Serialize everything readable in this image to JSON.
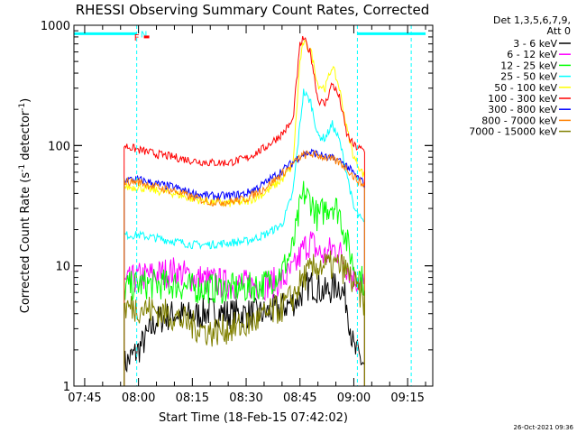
{
  "chart_data": {
    "type": "line",
    "title": "RHESSI Observing Summary Count Rates, Corrected",
    "xlabel": "Start Time (18-Feb-15 07:42:02)",
    "ylabel_main": "Corrected Count Rate (s",
    "ylabel_exp1": "-1",
    "ylabel_mid": " detector",
    "ylabel_exp2": "-1",
    "ylabel_end": ")",
    "y_scale": "log",
    "ylim": [
      1,
      1000
    ],
    "xlim_minutes": [
      -18,
      82
    ],
    "x_tick_labels": [
      {
        "label": "07:45",
        "minute": -15
      },
      {
        "label": "08:00",
        "minute": 0
      },
      {
        "label": "08:15",
        "minute": 15
      },
      {
        "label": "08:30",
        "minute": 30
      },
      {
        "label": "08:45",
        "minute": 45
      },
      {
        "label": "09:00",
        "minute": 60
      },
      {
        "label": "09:15",
        "minute": 75
      }
    ],
    "y_tick_labels": [
      {
        "label": "1",
        "value": 1
      },
      {
        "label": "10",
        "value": 10
      },
      {
        "label": "100",
        "value": 100
      },
      {
        "label": "1000",
        "value": 1000
      }
    ],
    "legend_header": [
      "Det 1,3,5,6,7,9,",
      "Att 0"
    ],
    "legend_placement": "right",
    "timestamp": "26-Oct-2021 09:36",
    "data_window_minutes": [
      -4,
      63
    ],
    "flags": [
      {
        "label": "N",
        "color": "#00ffff",
        "value": 850,
        "segments": [
          [
            -18,
            -0.5
          ],
          [
            61,
            80
          ]
        ]
      },
      {
        "label": "F",
        "color": "#ff0000",
        "value": 800,
        "segments": [
          [
            1.5,
            3
          ]
        ]
      }
    ],
    "vlines": [
      {
        "minute": -0.5,
        "color": "#00ffff"
      },
      {
        "minute": 61,
        "color": "#00ffff"
      },
      {
        "minute": 76,
        "color": "#00ffff"
      }
    ],
    "x": [
      -4,
      0,
      5,
      10,
      15,
      20,
      25,
      30,
      35,
      40,
      43,
      45,
      46,
      48,
      50,
      52,
      54,
      56,
      58,
      60,
      63
    ],
    "series": [
      {
        "name": "3 - 6 keV",
        "color": "#000000",
        "values": [
          1.5,
          2.0,
          3.5,
          4.0,
          3.8,
          4.2,
          4.0,
          4.0,
          4.0,
          4.5,
          5.0,
          5.5,
          6.5,
          7.0,
          6.5,
          6.0,
          6.5,
          7.0,
          5.0,
          2.0,
          1.5
        ]
      },
      {
        "name": "6 - 12 keV",
        "color": "#ff00ff",
        "values": [
          7,
          8,
          8.5,
          9,
          8,
          7.5,
          7,
          7,
          7,
          7.5,
          9,
          12,
          14,
          16,
          13,
          12,
          14,
          13,
          10,
          8,
          7
        ]
      },
      {
        "name": "12 - 25 keV",
        "color": "#00ff00",
        "values": [
          6.5,
          7,
          7,
          7,
          6.5,
          6.5,
          6.5,
          6.5,
          7,
          9,
          14,
          30,
          40,
          35,
          25,
          30,
          33,
          28,
          16,
          10,
          7
        ]
      },
      {
        "name": "25 - 50 keV",
        "color": "#00ffff",
        "values": [
          18,
          18,
          17,
          16,
          15,
          15,
          15.5,
          16,
          18,
          22,
          40,
          150,
          280,
          230,
          120,
          115,
          150,
          110,
          60,
          30,
          22
        ]
      },
      {
        "name": "50 - 100 keV",
        "color": "#ffff00",
        "values": [
          45,
          45,
          42,
          40,
          36,
          34,
          33,
          34,
          40,
          52,
          68,
          500,
          720,
          620,
          320,
          300,
          460,
          300,
          140,
          80,
          55
        ]
      },
      {
        "name": "100 - 300 keV",
        "color": "#ff0000",
        "values": [
          100,
          92,
          85,
          80,
          75,
          72,
          72,
          78,
          95,
          125,
          160,
          680,
          780,
          580,
          240,
          220,
          330,
          250,
          125,
          100,
          90
        ]
      },
      {
        "name": "300 - 800 keV",
        "color": "#0000ff",
        "values": [
          52,
          52,
          48,
          45,
          40,
          38,
          38,
          40,
          48,
          62,
          72,
          82,
          85,
          88,
          85,
          80,
          78,
          75,
          68,
          58,
          48
        ]
      },
      {
        "name": "800 - 7000 keV",
        "color": "#ff8000",
        "values": [
          50,
          50,
          45,
          42,
          37,
          34,
          34,
          36,
          44,
          58,
          70,
          80,
          83,
          85,
          83,
          80,
          76,
          72,
          65,
          55,
          46
        ]
      },
      {
        "name": "7000 - 15000 keV",
        "color": "#808000",
        "values": [
          4.5,
          4.5,
          4.2,
          3.8,
          3.2,
          2.8,
          3.0,
          3.2,
          3.8,
          4.5,
          5.5,
          7,
          8,
          9,
          10,
          10,
          10,
          10,
          9,
          7,
          5
        ]
      }
    ]
  }
}
